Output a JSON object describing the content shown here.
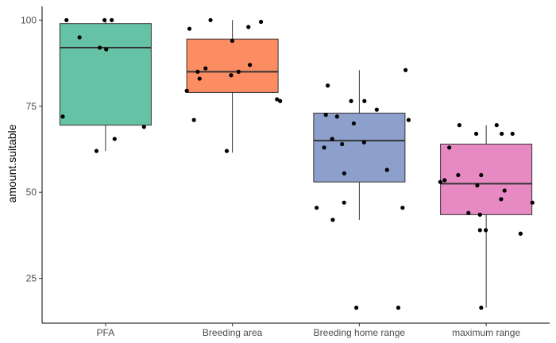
{
  "chart_data": {
    "type": "box",
    "title": "",
    "xlabel": "",
    "ylabel": "amount.suitable",
    "ylim": [
      12,
      104
    ],
    "yticks": [
      25,
      50,
      75,
      100
    ],
    "grid": false,
    "legend": "none",
    "categories": [
      "PFA",
      "Breeding area",
      "Breeding home range",
      "maximum range"
    ],
    "boxes": [
      {
        "category": "PFA",
        "color": "#66c2a5",
        "min": 62,
        "q1": 69.5,
        "median": 92,
        "q3": 99,
        "max": 100
      },
      {
        "category": "Breeding area",
        "color": "#fc8d62",
        "min": 61.5,
        "q1": 79,
        "median": 85,
        "q3": 94.5,
        "max": 100
      },
      {
        "category": "Breeding home range",
        "color": "#8da0cb",
        "min": 42,
        "q1": 53,
        "median": 65,
        "q3": 73,
        "max": 85.5
      },
      {
        "category": "maximum range",
        "color": "#e78ac3",
        "min": 16.5,
        "q1": 43.5,
        "median": 52.5,
        "q3": 64,
        "max": 69.5
      }
    ],
    "points": [
      {
        "category": "PFA",
        "values": [
          100,
          100,
          100,
          95,
          92,
          91.5,
          72,
          69,
          65.5,
          62
        ]
      },
      {
        "category": "Breeding area",
        "values": [
          100,
          99.5,
          98,
          97.5,
          94,
          86,
          87,
          85,
          85,
          84,
          83,
          79.5,
          77,
          76.5,
          71,
          62
        ]
      },
      {
        "category": "Breeding home range",
        "values": [
          85.5,
          81,
          76.5,
          76.5,
          74,
          72,
          72.5,
          71,
          70,
          65.5,
          64.5,
          64,
          63,
          56.5,
          55.5,
          47,
          45.5,
          45.5,
          42,
          16.5,
          16.5
        ]
      },
      {
        "category": "maximum range",
        "values": [
          69.5,
          69.5,
          67,
          67,
          67,
          63,
          55,
          55,
          53.5,
          53,
          52,
          50.5,
          48,
          47,
          44,
          43.5,
          39,
          39,
          38,
          16.5
        ]
      }
    ]
  }
}
